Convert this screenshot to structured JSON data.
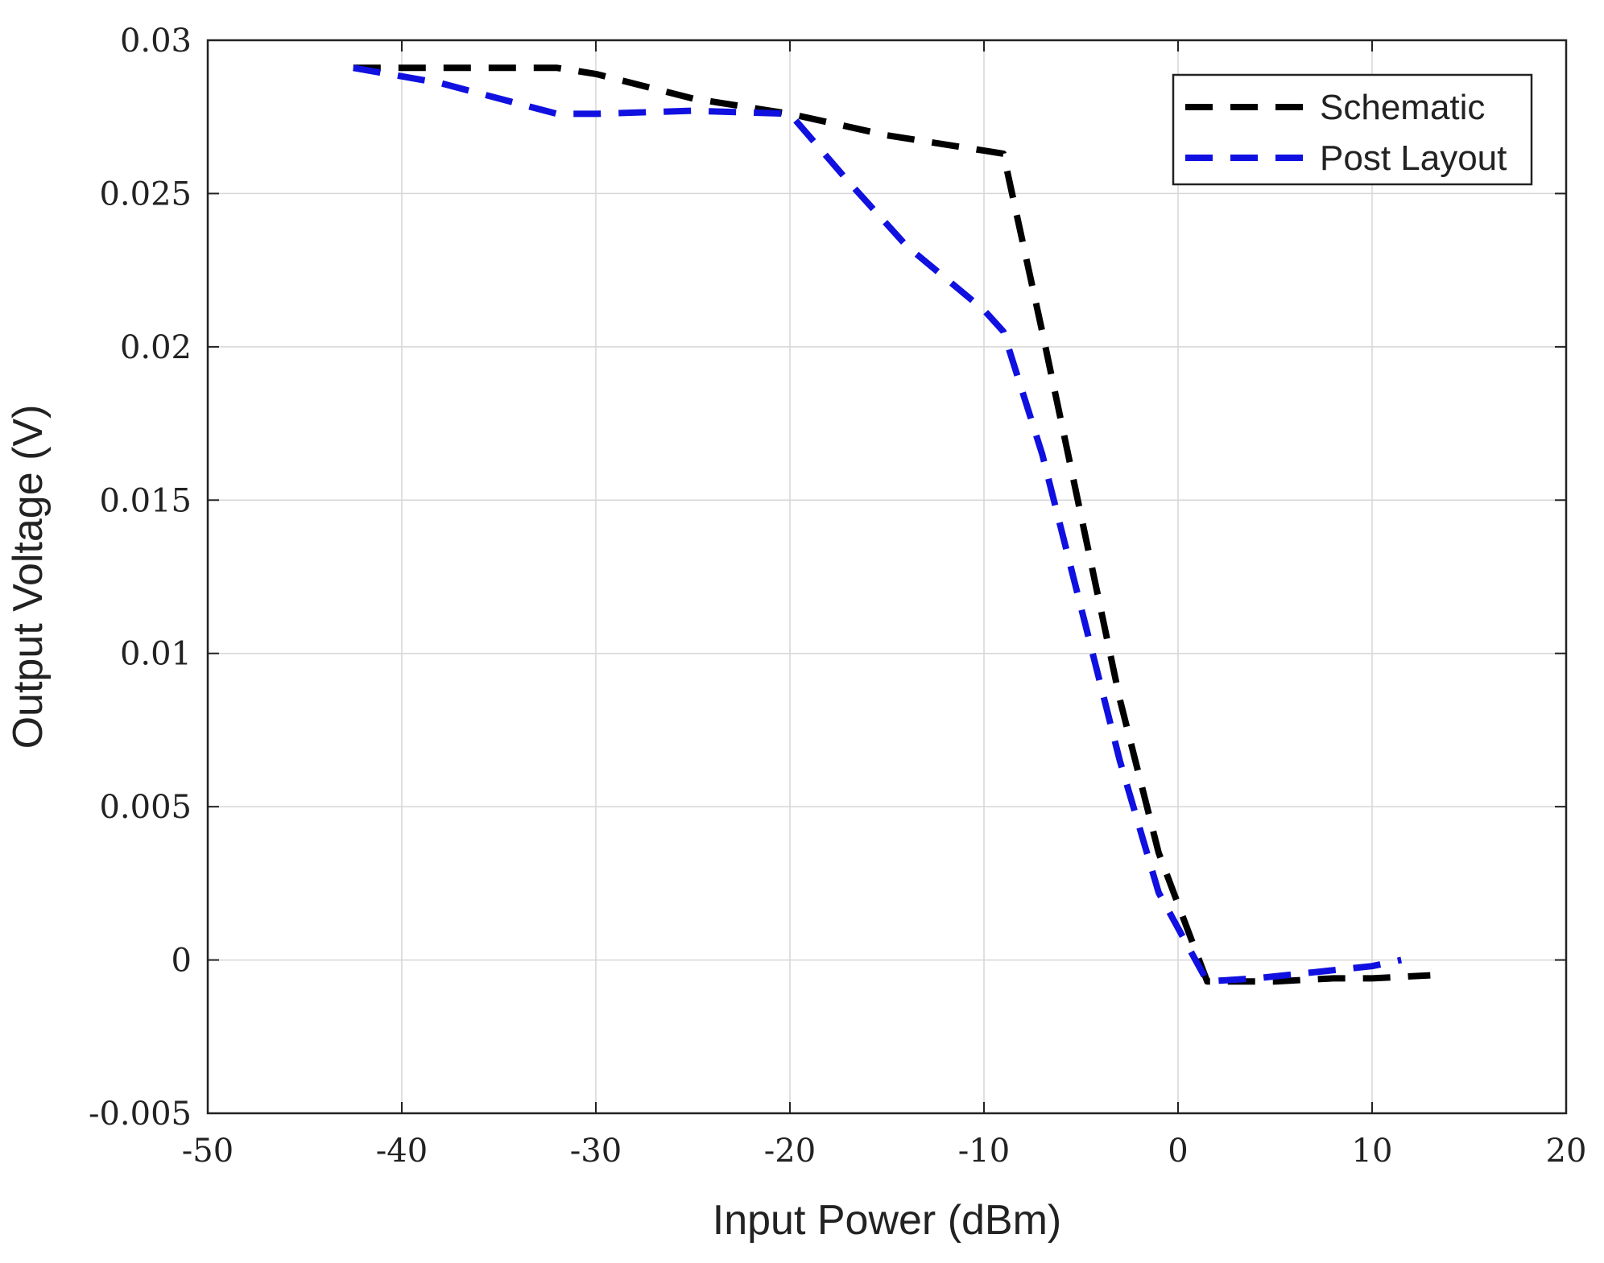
{
  "chart_data": {
    "type": "line",
    "title": "",
    "xlabel": "Input Power (dBm)",
    "ylabel": "Output Voltage (V)",
    "xlim": [
      -50,
      20
    ],
    "ylim": [
      -0.005,
      0.03
    ],
    "xticks": [
      -50,
      -40,
      -30,
      -20,
      -10,
      0,
      10,
      20
    ],
    "xtick_labels": [
      "-50",
      "-40",
      "-30",
      "-20",
      "-10",
      "0",
      "10",
      "20"
    ],
    "yticks": [
      -0.005,
      0,
      0.005,
      0.01,
      0.015,
      0.02,
      0.025,
      0.03
    ],
    "ytick_labels": [
      "-0.005",
      "0",
      "0.005",
      "0.01",
      "0.015",
      "0.02",
      "0.025",
      "0.03"
    ],
    "grid": true,
    "legend_position": "top-right",
    "series": [
      {
        "name": "Schematic",
        "color": "#000000",
        "style": "dashed",
        "x": [
          -42.5,
          -32,
          -30,
          -25,
          -20,
          -15,
          -10,
          -9,
          -7,
          -5,
          -3,
          -1,
          1.5,
          5,
          8,
          10,
          13
        ],
        "y": [
          0.0291,
          0.0291,
          0.0289,
          0.0281,
          0.0276,
          0.0269,
          0.0264,
          0.0263,
          0.0205,
          0.0145,
          0.0085,
          0.0035,
          -0.0007,
          -0.0007,
          -0.0006,
          -0.0006,
          -0.0005
        ]
      },
      {
        "name": "Post Layout",
        "color": "#1010e0",
        "style": "dashed",
        "x": [
          -42.5,
          -38,
          -32,
          -30,
          -25,
          -20,
          -17,
          -14,
          -10,
          -9,
          -7,
          -5,
          -3,
          -1,
          1.5,
          4,
          7,
          10,
          11.5
        ],
        "y": [
          0.0291,
          0.0286,
          0.0276,
          0.0276,
          0.0277,
          0.0276,
          0.0254,
          0.0233,
          0.0212,
          0.0205,
          0.0165,
          0.0115,
          0.0065,
          0.0022,
          -0.0007,
          -0.0006,
          -0.0004,
          -0.0002,
          0.0
        ]
      }
    ]
  }
}
